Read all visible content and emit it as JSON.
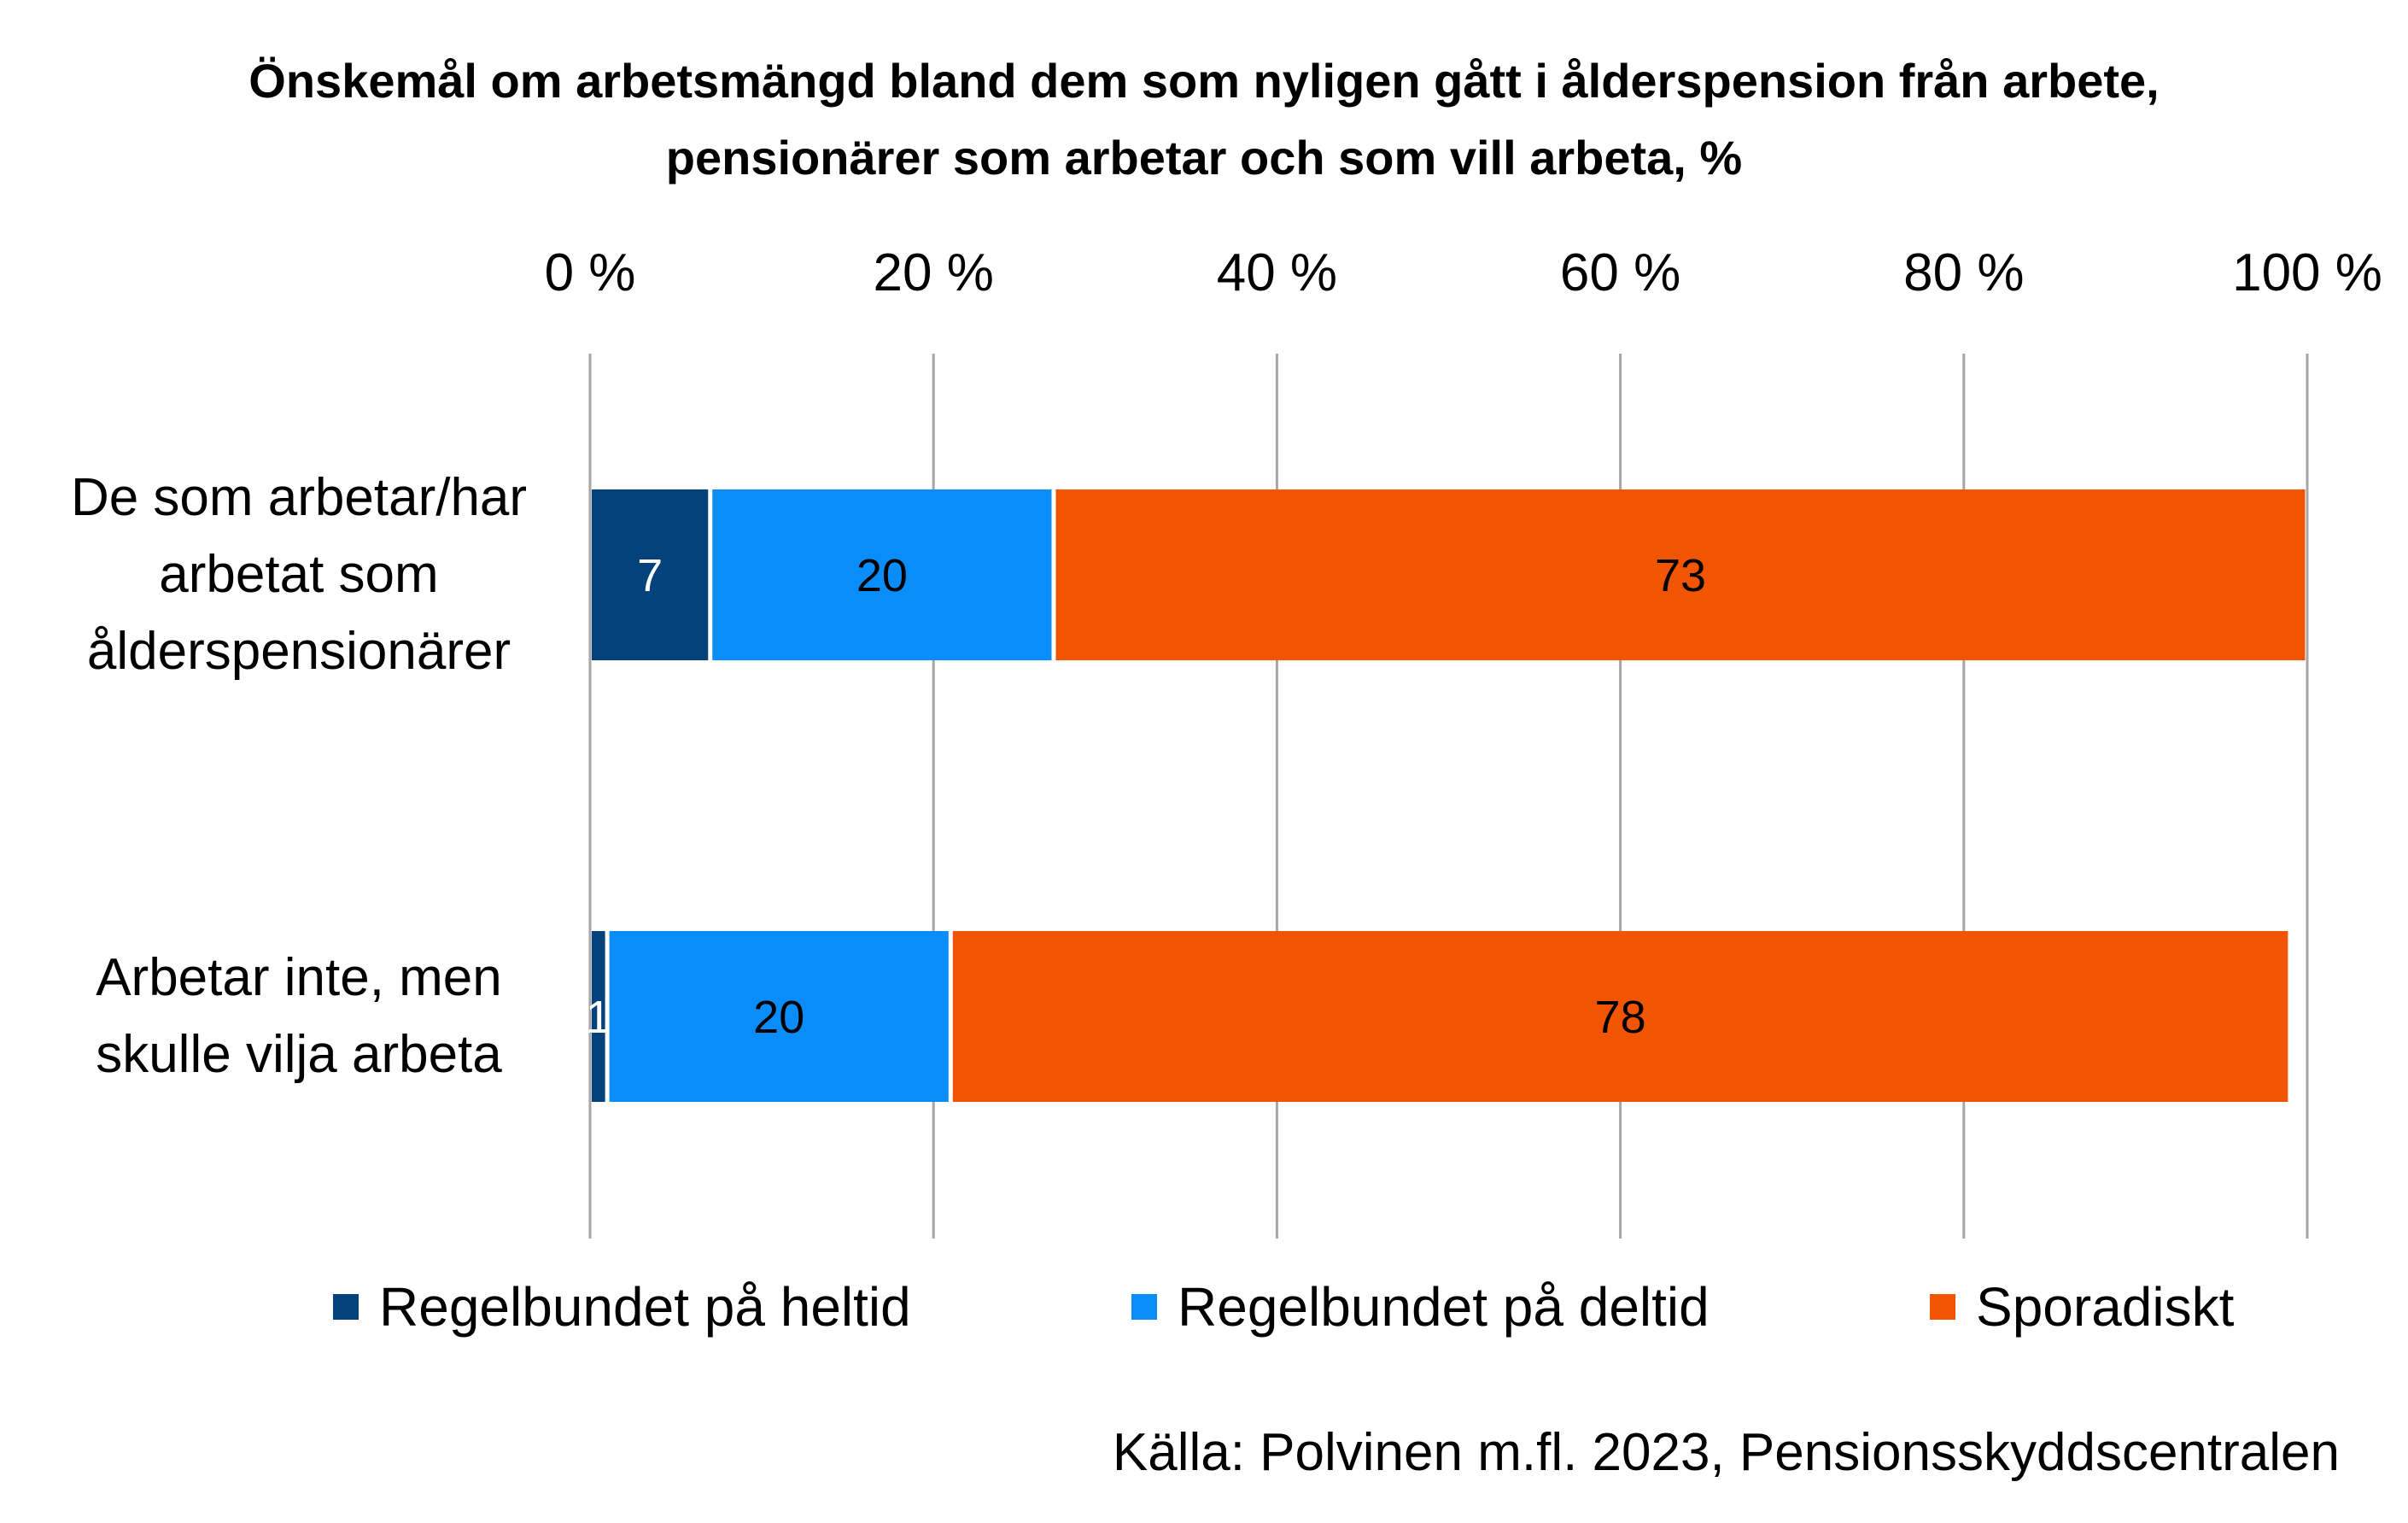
{
  "title_line1": "Önskemål om arbetsmängd bland dem som nyligen gått i ålderspension från arbete,",
  "title_line2": "pensionärer som arbetar och som vill arbeta, %",
  "source": "Källa: Polvinen m.fl. 2023, Pensionsskyddscentralen",
  "chart_data": {
    "type": "bar",
    "orientation": "horizontal",
    "stacked": "percent",
    "title": "Önskemål om arbetsmängd bland dem som nyligen gått i ålderspension från arbete, pensionärer som arbetar och som vill arbeta, %",
    "categories": [
      "De som arbetar/har arbetat som ålderspensionärer",
      "Arbetar inte, men skulle vilja arbeta"
    ],
    "category_lines": [
      [
        "De som arbetar/har",
        "arbetat som",
        "ålderspensionärer"
      ],
      [
        "Arbetar inte, men",
        "skulle vilja arbeta"
      ]
    ],
    "series": [
      {
        "name": "Regelbundet på heltid",
        "values": [
          7,
          1
        ],
        "color": "#03427A",
        "label_color": "#ffffff"
      },
      {
        "name": "Regelbundet på deltid",
        "values": [
          20,
          20
        ],
        "color": "#0A8DF8",
        "label_color": "#000000"
      },
      {
        "name": "Sporadiskt",
        "values": [
          73,
          78
        ],
        "color": "#F25502",
        "label_color": "#000000"
      }
    ],
    "x_ticks": [
      "0 %",
      "20 %",
      "40 %",
      "60 %",
      "80 %",
      "100 %"
    ],
    "xlim": [
      0,
      100
    ],
    "grid": true,
    "gridline_color": "#A6A6A6",
    "legend_position": "bottom"
  }
}
